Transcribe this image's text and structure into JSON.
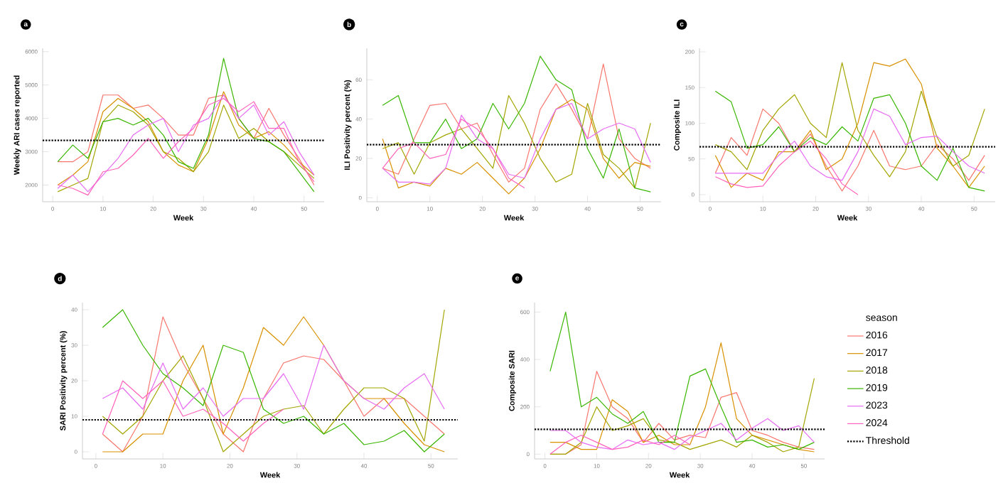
{
  "chart_data": [
    {
      "type": "line",
      "title": "a",
      "xlabel": "Week",
      "ylabel": "Weekly ARI cases reported",
      "xlim": [
        -2,
        54
      ],
      "ylim": [
        1500,
        6100
      ],
      "xticks": [
        0,
        10,
        20,
        30,
        40,
        50
      ],
      "yticks": [
        2000,
        3000,
        4000,
        5000,
        6000
      ],
      "grid": false,
      "legend": false,
      "marker": "none",
      "line_style": "solid",
      "ref_lines": [
        {
          "axis": "y",
          "value": 3340,
          "line_style": "dotted",
          "color": "#000000"
        }
      ],
      "series": [
        {
          "color": "#f8766d",
          "x": [
            1,
            4,
            7,
            10,
            13,
            16,
            19,
            22,
            25,
            28,
            31,
            34,
            37,
            40,
            43,
            46,
            49,
            52
          ],
          "values": [
            2700,
            2700,
            3000,
            4700,
            4700,
            4300,
            4400,
            4000,
            3500,
            3500,
            4600,
            4700,
            4000,
            3400,
            4300,
            3500,
            2800,
            2000
          ]
        },
        {
          "color": "#d89000",
          "x": [
            1,
            4,
            7,
            10,
            13,
            16,
            19,
            22,
            25,
            28,
            31,
            34,
            37,
            40,
            43,
            46,
            49,
            52
          ],
          "values": [
            2000,
            2300,
            2700,
            4200,
            4600,
            4300,
            3900,
            3000,
            2600,
            2400,
            3400,
            4800,
            3800,
            3400,
            3600,
            3200,
            2700,
            2300
          ]
        },
        {
          "color": "#a3a500",
          "x": [
            1,
            4,
            7,
            10,
            13,
            16,
            19,
            22,
            25,
            28,
            31,
            34,
            37,
            40,
            43,
            46,
            49,
            52
          ],
          "values": [
            1800,
            2000,
            2200,
            3900,
            4400,
            4200,
            3800,
            3000,
            2800,
            2400,
            3000,
            4400,
            3400,
            3700,
            3300,
            3000,
            2600,
            2200
          ]
        },
        {
          "color": "#39b600",
          "x": [
            1,
            4,
            7,
            10,
            13,
            16,
            19,
            22,
            25,
            28,
            31,
            34,
            37,
            40,
            43,
            46,
            49,
            52
          ],
          "values": [
            2700,
            3200,
            2800,
            3900,
            4000,
            3800,
            4000,
            3500,
            2700,
            2500,
            3500,
            5800,
            4000,
            3400,
            3300,
            3000,
            2400,
            1800
          ]
        },
        {
          "color": "#e76bf3",
          "x": [
            1,
            4,
            7,
            10,
            13,
            16,
            19,
            22,
            25,
            28,
            31,
            34,
            37,
            40,
            43,
            46,
            49,
            52
          ],
          "values": [
            1900,
            2300,
            1800,
            2300,
            2800,
            3500,
            3800,
            4000,
            3000,
            3800,
            4000,
            4700,
            4000,
            4400,
            3500,
            3900,
            3000,
            2300
          ]
        },
        {
          "color": "#ff62bc",
          "x": [
            1,
            4,
            7,
            10,
            13,
            16,
            19,
            22,
            25,
            28,
            31,
            34,
            37,
            40,
            43,
            46,
            49,
            52
          ],
          "values": [
            2000,
            1900,
            1700,
            2400,
            2500,
            2900,
            3400,
            2800,
            3300,
            3700,
            4400,
            4600,
            4200,
            4500,
            3700,
            3700,
            2700,
            2100
          ]
        }
      ]
    },
    {
      "type": "line",
      "title": "b",
      "xlabel": "Week",
      "ylabel": "ILI Positivity percent (%)",
      "xlim": [
        -2,
        54
      ],
      "ylim": [
        -2,
        76
      ],
      "xticks": [
        0,
        10,
        20,
        30,
        40,
        50
      ],
      "yticks": [
        0,
        20,
        40,
        60
      ],
      "grid": false,
      "legend": false,
      "marker": "none",
      "line_style": "solid",
      "ref_lines": [
        {
          "axis": "y",
          "value": 27,
          "line_style": "dotted",
          "color": "#000000"
        }
      ],
      "series": [
        {
          "color": "#f8766d",
          "x": [
            1,
            4,
            7,
            10,
            13,
            16,
            19,
            22,
            25,
            28,
            31,
            34,
            37,
            40,
            43,
            46,
            49,
            52
          ],
          "values": [
            15,
            12,
            30,
            47,
            48,
            35,
            38,
            22,
            8,
            15,
            45,
            58,
            45,
            30,
            68,
            30,
            20,
            15
          ]
        },
        {
          "color": "#d89000",
          "x": [
            1,
            4,
            7,
            10,
            13,
            16,
            19,
            22,
            25,
            28,
            31,
            34,
            37,
            40,
            43,
            46,
            49,
            52
          ],
          "values": [
            30,
            5,
            8,
            6,
            15,
            12,
            18,
            10,
            2,
            10,
            25,
            45,
            50,
            45,
            20,
            10,
            18,
            16
          ]
        },
        {
          "color": "#a3a500",
          "x": [
            1,
            4,
            7,
            10,
            13,
            16,
            19,
            22,
            25,
            28,
            31,
            34,
            37,
            40,
            43,
            46,
            49,
            52
          ],
          "values": [
            25,
            28,
            12,
            28,
            32,
            35,
            25,
            15,
            52,
            38,
            20,
            8,
            12,
            48,
            22,
            15,
            5,
            38
          ]
        },
        {
          "color": "#39b600",
          "x": [
            1,
            4,
            7,
            10,
            13,
            16,
            19,
            22,
            25,
            28,
            31,
            34,
            37,
            40,
            43,
            46,
            49,
            52
          ],
          "values": [
            47,
            52,
            28,
            28,
            40,
            25,
            30,
            48,
            35,
            48,
            72,
            60,
            55,
            25,
            10,
            35,
            5,
            3
          ]
        },
        {
          "color": "#e76bf3",
          "x": [
            1,
            4,
            7,
            10,
            13,
            16,
            19,
            22,
            25,
            28,
            31,
            34,
            37,
            40,
            43,
            46,
            49,
            52
          ],
          "values": [
            15,
            8,
            8,
            7,
            15,
            42,
            30,
            25,
            12,
            10,
            30,
            45,
            48,
            30,
            35,
            38,
            35,
            18
          ]
        },
        {
          "color": "#ff62bc",
          "x": [
            1,
            4,
            7,
            10,
            13,
            16,
            19,
            22,
            25,
            28
          ],
          "values": [
            15,
            25,
            28,
            20,
            22,
            40,
            35,
            25,
            10,
            5
          ]
        }
      ]
    },
    {
      "type": "line",
      "title": "c",
      "xlabel": "Week",
      "ylabel": "Composite ILI",
      "xlim": [
        -2,
        54
      ],
      "ylim": [
        -10,
        205
      ],
      "xticks": [
        0,
        10,
        20,
        30,
        40,
        50
      ],
      "yticks": [
        0,
        50,
        100,
        150,
        200
      ],
      "grid": false,
      "legend": false,
      "marker": "none",
      "line_style": "solid",
      "ref_lines": [
        {
          "axis": "y",
          "value": 67,
          "line_style": "dotted",
          "color": "#000000"
        }
      ],
      "series": [
        {
          "color": "#f8766d",
          "x": [
            1,
            4,
            7,
            10,
            13,
            16,
            19,
            22,
            25,
            28,
            31,
            34,
            37,
            40,
            43,
            46,
            49,
            52
          ],
          "values": [
            30,
            80,
            55,
            120,
            100,
            60,
            85,
            40,
            5,
            40,
            90,
            40,
            35,
            40,
            70,
            50,
            20,
            55
          ]
        },
        {
          "color": "#d89000",
          "x": [
            1,
            4,
            7,
            10,
            13,
            16,
            19,
            22,
            25,
            28,
            31,
            34,
            37,
            40,
            43,
            46,
            49,
            52
          ],
          "values": [
            55,
            10,
            30,
            20,
            60,
            60,
            90,
            35,
            50,
            100,
            185,
            180,
            190,
            155,
            65,
            40,
            10,
            40
          ]
        },
        {
          "color": "#a3a500",
          "x": [
            1,
            4,
            7,
            10,
            13,
            16,
            19,
            22,
            25,
            28,
            31,
            34,
            37,
            40,
            43,
            46,
            49,
            52
          ],
          "values": [
            70,
            60,
            35,
            90,
            120,
            140,
            100,
            80,
            185,
            90,
            55,
            25,
            60,
            145,
            80,
            40,
            55,
            120
          ]
        },
        {
          "color": "#39b600",
          "x": [
            1,
            4,
            7,
            10,
            13,
            16,
            19,
            22,
            25,
            28,
            31,
            34,
            37,
            40,
            43,
            46,
            49,
            52
          ],
          "values": [
            145,
            130,
            65,
            70,
            95,
            60,
            80,
            70,
            95,
            75,
            135,
            140,
            100,
            40,
            20,
            65,
            10,
            5
          ]
        },
        {
          "color": "#e76bf3",
          "x": [
            1,
            4,
            7,
            10,
            13,
            16,
            19,
            22,
            25,
            28,
            31,
            34,
            37,
            40,
            43,
            46,
            49,
            52
          ],
          "values": [
            30,
            30,
            30,
            30,
            55,
            75,
            40,
            25,
            20,
            60,
            120,
            110,
            70,
            80,
            82,
            60,
            40,
            30
          ]
        },
        {
          "color": "#ff62bc",
          "x": [
            1,
            4,
            7,
            10,
            13,
            16,
            19,
            22,
            25,
            28
          ],
          "values": [
            25,
            15,
            10,
            12,
            40,
            60,
            75,
            50,
            15,
            0
          ]
        }
      ]
    },
    {
      "type": "line",
      "title": "d",
      "xlabel": "Week",
      "ylabel": "SARI Positivity percent (%)",
      "xlim": [
        -2,
        54
      ],
      "ylim": [
        -2,
        42
      ],
      "xticks": [
        0,
        10,
        20,
        30,
        40,
        50
      ],
      "yticks": [
        0,
        10,
        20,
        30,
        40
      ],
      "grid": false,
      "legend": false,
      "marker": "none",
      "line_style": "solid",
      "ref_lines": [
        {
          "axis": "y",
          "value": 9,
          "line_style": "dotted",
          "color": "#000000"
        }
      ],
      "series": [
        {
          "color": "#f8766d",
          "x": [
            1,
            4,
            7,
            10,
            13,
            16,
            19,
            22,
            25,
            28,
            31,
            34,
            37,
            40,
            43,
            46,
            49,
            52
          ],
          "values": [
            5,
            0,
            10,
            38,
            25,
            15,
            5,
            0,
            15,
            25,
            27,
            26,
            20,
            10,
            15,
            15,
            10,
            5
          ]
        },
        {
          "color": "#d89000",
          "x": [
            1,
            4,
            7,
            10,
            13,
            16,
            19,
            22,
            25,
            28,
            31,
            34,
            37,
            40,
            43,
            46,
            49,
            52
          ],
          "values": [
            0,
            0,
            5,
            5,
            20,
            30,
            5,
            18,
            35,
            30,
            38,
            30,
            20,
            15,
            15,
            8,
            2,
            0
          ]
        },
        {
          "color": "#a3a500",
          "x": [
            1,
            4,
            7,
            10,
            13,
            16,
            19,
            22,
            25,
            28,
            31,
            34,
            37,
            40,
            43,
            46,
            49,
            52
          ],
          "values": [
            10,
            5,
            10,
            20,
            27,
            15,
            0,
            5,
            10,
            12,
            13,
            5,
            12,
            18,
            18,
            15,
            3,
            40
          ]
        },
        {
          "color": "#39b600",
          "x": [
            1,
            4,
            7,
            10,
            13,
            16,
            19,
            22,
            25,
            28,
            31,
            34,
            37,
            40,
            43,
            46,
            49,
            52
          ],
          "values": [
            35,
            40,
            30,
            22,
            18,
            13,
            30,
            28,
            12,
            8,
            10,
            5,
            8,
            2,
            3,
            6,
            0,
            5
          ]
        },
        {
          "color": "#e76bf3",
          "x": [
            1,
            4,
            7,
            10,
            13,
            16,
            19,
            22,
            25,
            28,
            31,
            34,
            37,
            40,
            43,
            46,
            49,
            52
          ],
          "values": [
            15,
            18,
            12,
            25,
            12,
            18,
            10,
            15,
            15,
            22,
            12,
            30,
            20,
            15,
            12,
            18,
            22,
            12
          ]
        },
        {
          "color": "#ff62bc",
          "x": [
            1,
            4,
            7,
            10,
            13,
            16,
            19,
            22,
            25,
            28
          ],
          "values": [
            5,
            20,
            15,
            20,
            10,
            12,
            8,
            3,
            8,
            12
          ]
        }
      ]
    },
    {
      "type": "line",
      "title": "e",
      "xlabel": "Week",
      "ylabel": "Composite SARI",
      "xlim": [
        -2,
        54
      ],
      "ylim": [
        -20,
        640
      ],
      "xticks": [
        0,
        10,
        20,
        30,
        40,
        50
      ],
      "yticks": [
        0,
        200,
        400,
        600
      ],
      "grid": false,
      "legend": "right",
      "legend_title": "season",
      "marker": "none",
      "line_style": "solid",
      "ref_lines": [
        {
          "axis": "y",
          "value": 105,
          "label": "Threshold",
          "line_style": "dotted",
          "color": "#000000"
        }
      ],
      "series": [
        {
          "name": "2016",
          "color": "#f8766d",
          "x": [
            1,
            4,
            7,
            10,
            13,
            16,
            19,
            22,
            25,
            28,
            31,
            34,
            37,
            40,
            43,
            46,
            49,
            52
          ],
          "values": [
            0,
            0,
            40,
            350,
            200,
            150,
            50,
            130,
            60,
            80,
            70,
            240,
            260,
            100,
            80,
            50,
            30,
            20
          ]
        },
        {
          "name": "2017",
          "color": "#d89000",
          "x": [
            1,
            4,
            7,
            10,
            13,
            16,
            19,
            22,
            25,
            28,
            31,
            34,
            37,
            40,
            43,
            46,
            49,
            52
          ],
          "values": [
            50,
            50,
            20,
            20,
            230,
            180,
            50,
            80,
            40,
            40,
            200,
            470,
            150,
            80,
            60,
            40,
            20,
            10
          ]
        },
        {
          "name": "2018",
          "color": "#a3a500",
          "x": [
            1,
            4,
            7,
            10,
            13,
            16,
            19,
            22,
            25,
            28,
            31,
            34,
            37,
            40,
            43,
            46,
            49,
            52
          ],
          "values": [
            0,
            0,
            50,
            200,
            100,
            120,
            150,
            60,
            50,
            20,
            40,
            60,
            30,
            80,
            50,
            10,
            30,
            320
          ]
        },
        {
          "name": "2019",
          "color": "#39b600",
          "x": [
            1,
            4,
            7,
            10,
            13,
            16,
            19,
            22,
            25,
            28,
            31,
            34,
            37,
            40,
            43,
            46,
            49,
            52
          ],
          "values": [
            350,
            600,
            200,
            240,
            170,
            130,
            180,
            50,
            50,
            330,
            360,
            200,
            50,
            60,
            30,
            40,
            20,
            50
          ]
        },
        {
          "name": "2023",
          "color": "#e76bf3",
          "x": [
            1,
            4,
            7,
            10,
            13,
            16,
            19,
            22,
            25,
            28,
            31,
            34,
            37,
            40,
            43,
            46,
            49,
            52
          ],
          "values": [
            100,
            100,
            50,
            30,
            20,
            60,
            40,
            50,
            20,
            70,
            100,
            130,
            60,
            110,
            150,
            100,
            120,
            50
          ]
        },
        {
          "name": "2024",
          "color": "#ff62bc",
          "x": [
            1,
            4,
            7,
            10,
            13,
            16,
            19,
            22,
            25,
            28
          ],
          "values": [
            0,
            50,
            80,
            50,
            20,
            30,
            60,
            40,
            80,
            40
          ]
        }
      ]
    }
  ]
}
